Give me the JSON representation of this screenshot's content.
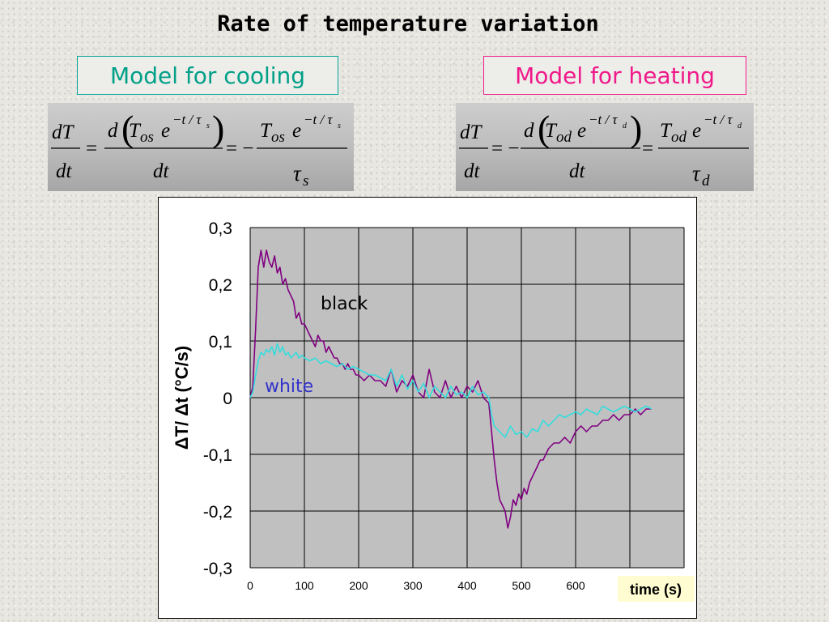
{
  "slide": {
    "title": "Rate of temperature variation"
  },
  "models": {
    "cooling": {
      "label": "Model for cooling",
      "color": "#00a088"
    },
    "heating": {
      "label": "Model for heating",
      "color": "#f0198a"
    }
  },
  "formulas": {
    "cooling": {
      "lhs_num": "dT",
      "lhs_den": "dt",
      "d": "d",
      "T_sub": "os",
      "den_dt": "dt",
      "tau_sub": "s",
      "exponent": "−t / τ",
      "exp_sub": "s",
      "sign_before": "=",
      "sign_mid": "= −"
    },
    "heating": {
      "lhs_num": "dT",
      "lhs_den": "dt",
      "d": "d",
      "T_sub": "od",
      "den_dt": "dt",
      "tau_sub": "d",
      "exponent": "−t / τ",
      "exp_sub": "d",
      "sign_before": "= −",
      "sign_mid": "="
    }
  },
  "chart_data": {
    "type": "line",
    "title": "",
    "xlabel": "time (s)",
    "ylabel": "ΔT/ Δt (°C/s)",
    "xlim": [
      0,
      800
    ],
    "ylim": [
      -0.3,
      0.3
    ],
    "x_ticks": [
      "0",
      "100",
      "200",
      "300",
      "400",
      "500",
      "600"
    ],
    "y_ticks": [
      "0,3",
      "0,2",
      "0,1",
      "0",
      "-0,1",
      "-0,2",
      "-0,3"
    ],
    "grid": true,
    "plot_background": "#c0c0c0",
    "series": [
      {
        "name": "black",
        "color": "#800080",
        "x": [
          0,
          5,
          10,
          15,
          20,
          25,
          30,
          35,
          40,
          45,
          50,
          55,
          60,
          65,
          70,
          75,
          80,
          85,
          90,
          95,
          100,
          105,
          110,
          115,
          120,
          125,
          130,
          135,
          140,
          145,
          150,
          155,
          160,
          165,
          170,
          175,
          180,
          185,
          190,
          195,
          200,
          210,
          220,
          230,
          240,
          250,
          260,
          270,
          280,
          290,
          300,
          310,
          320,
          330,
          340,
          350,
          360,
          370,
          380,
          390,
          400,
          410,
          420,
          430,
          440,
          445,
          450,
          455,
          460,
          465,
          470,
          475,
          480,
          485,
          490,
          495,
          500,
          505,
          510,
          515,
          520,
          525,
          530,
          535,
          540,
          545,
          550,
          560,
          570,
          580,
          590,
          600,
          610,
          620,
          630,
          640,
          650,
          660,
          670,
          680,
          690,
          700,
          710,
          720,
          730,
          740
        ],
        "y": [
          0.0,
          0.02,
          0.12,
          0.23,
          0.26,
          0.23,
          0.26,
          0.24,
          0.23,
          0.25,
          0.22,
          0.23,
          0.2,
          0.21,
          0.19,
          0.18,
          0.17,
          0.14,
          0.15,
          0.13,
          0.13,
          0.12,
          0.11,
          0.1,
          0.09,
          0.11,
          0.1,
          0.1,
          0.08,
          0.09,
          0.08,
          0.07,
          0.07,
          0.06,
          0.06,
          0.05,
          0.06,
          0.05,
          0.05,
          0.04,
          0.04,
          0.03,
          0.04,
          0.03,
          0.03,
          0.02,
          0.05,
          0.01,
          0.03,
          0.02,
          0.04,
          0.01,
          0.0,
          0.05,
          0.01,
          0.0,
          0.03,
          0.0,
          0.02,
          0.0,
          0.02,
          0.01,
          0.03,
          0.0,
          -0.01,
          -0.06,
          -0.11,
          -0.15,
          -0.18,
          -0.19,
          -0.2,
          -0.23,
          -0.21,
          -0.18,
          -0.19,
          -0.17,
          -0.18,
          -0.16,
          -0.17,
          -0.15,
          -0.14,
          -0.13,
          -0.12,
          -0.11,
          -0.11,
          -0.1,
          -0.09,
          -0.08,
          -0.08,
          -0.07,
          -0.08,
          -0.06,
          -0.05,
          -0.06,
          -0.05,
          -0.05,
          -0.04,
          -0.04,
          -0.03,
          -0.04,
          -0.03,
          -0.03,
          -0.02,
          -0.03,
          -0.02,
          -0.02
        ]
      },
      {
        "name": "white",
        "color": "#33dddd",
        "x": [
          0,
          5,
          10,
          15,
          20,
          25,
          30,
          35,
          40,
          45,
          50,
          55,
          60,
          65,
          70,
          75,
          80,
          85,
          90,
          95,
          100,
          110,
          120,
          130,
          140,
          150,
          160,
          170,
          180,
          190,
          200,
          210,
          220,
          230,
          240,
          250,
          260,
          270,
          280,
          290,
          300,
          310,
          320,
          330,
          340,
          350,
          360,
          370,
          380,
          390,
          400,
          410,
          420,
          430,
          440,
          445,
          450,
          460,
          470,
          480,
          490,
          500,
          510,
          520,
          530,
          540,
          550,
          560,
          570,
          580,
          590,
          600,
          610,
          620,
          630,
          640,
          650,
          660,
          670,
          680,
          690,
          700,
          710,
          720,
          730,
          740
        ],
        "y": [
          0.0,
          0.01,
          0.04,
          0.065,
          0.08,
          0.075,
          0.085,
          0.08,
          0.09,
          0.075,
          0.095,
          0.08,
          0.09,
          0.075,
          0.08,
          0.07,
          0.075,
          0.08,
          0.07,
          0.075,
          0.07,
          0.065,
          0.07,
          0.06,
          0.065,
          0.06,
          0.055,
          0.06,
          0.05,
          0.055,
          0.05,
          0.045,
          0.04,
          0.04,
          0.035,
          0.03,
          0.05,
          0.02,
          0.04,
          0.015,
          0.03,
          0.01,
          0.025,
          0.0,
          0.02,
          0.01,
          0.0,
          0.02,
          0.005,
          0.01,
          0.0,
          0.02,
          0.005,
          0.01,
          0.0,
          -0.03,
          -0.05,
          -0.06,
          -0.07,
          -0.05,
          -0.065,
          -0.06,
          -0.07,
          -0.055,
          -0.06,
          -0.04,
          -0.05,
          -0.04,
          -0.03,
          -0.035,
          -0.03,
          -0.025,
          -0.03,
          -0.02,
          -0.025,
          -0.03,
          -0.015,
          -0.02,
          -0.025,
          -0.02,
          -0.015,
          -0.02,
          -0.025,
          -0.02,
          -0.015,
          -0.02
        ]
      }
    ],
    "annotations": [
      {
        "text": "black",
        "series": "black"
      },
      {
        "text": "white",
        "series": "white",
        "color": "#3333cc"
      }
    ],
    "xlabel_background": "#fffcd2"
  }
}
